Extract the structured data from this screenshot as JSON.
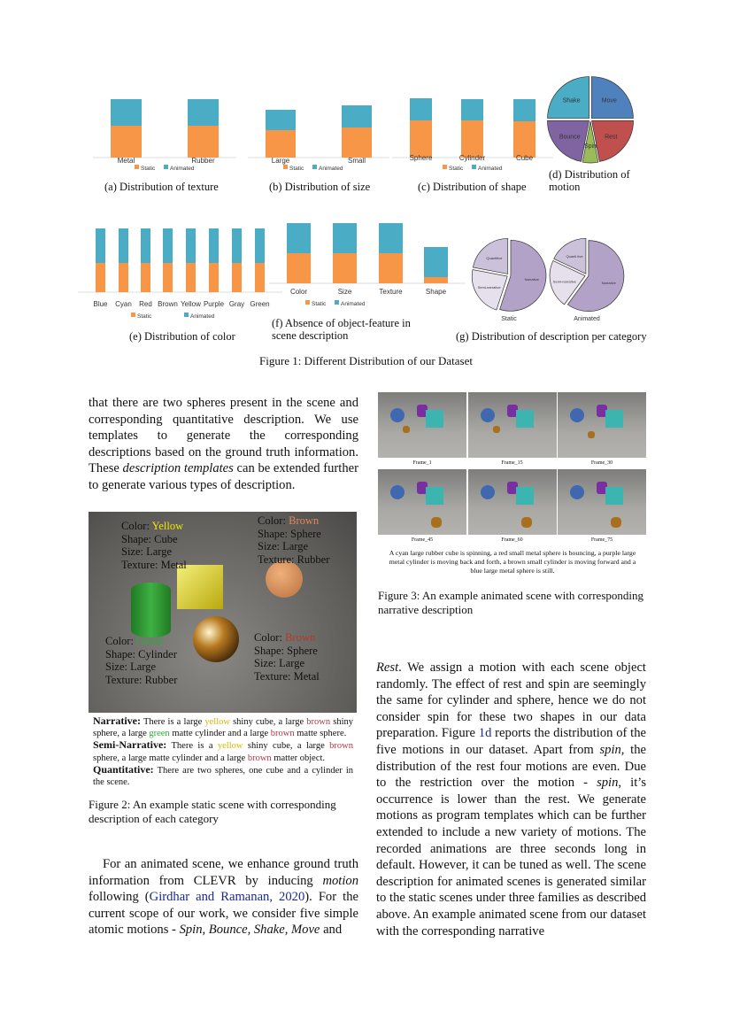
{
  "figure1": {
    "caption": "Figure 1: Different Distribution of our Dataset",
    "legend": [
      "Static",
      "Animated"
    ],
    "colors": {
      "static": "#f79646",
      "animated": "#4bacc6"
    }
  },
  "chart_data": [
    {
      "id": "a",
      "type": "bar",
      "stacked": true,
      "caption": "(a) Distribution of texture",
      "categories": [
        "Metal",
        "Rubber"
      ],
      "series": [
        {
          "name": "Static",
          "values": [
            36,
            36
          ]
        },
        {
          "name": "Animated",
          "values": [
            30,
            30
          ]
        }
      ],
      "ylim": [
        0,
        70
      ]
    },
    {
      "id": "b",
      "type": "bar",
      "stacked": true,
      "caption": "(b) Distribution of size",
      "categories": [
        "Large",
        "Small"
      ],
      "series": [
        {
          "name": "Static",
          "values": [
            31,
            34
          ]
        },
        {
          "name": "Animated",
          "values": [
            23,
            25
          ]
        }
      ],
      "ylim": [
        0,
        70
      ]
    },
    {
      "id": "c",
      "type": "bar",
      "stacked": true,
      "caption": "(c) Distribution of shape",
      "categories": [
        "Sphere",
        "Cylinder",
        "Cube"
      ],
      "series": [
        {
          "name": "Static",
          "values": [
            42,
            42,
            41
          ]
        },
        {
          "name": "Animated",
          "values": [
            25,
            24,
            25
          ]
        }
      ],
      "ylim": [
        0,
        70
      ]
    },
    {
      "id": "d",
      "type": "pie",
      "caption": "(d) Distribution of motion",
      "labels": [
        "Move",
        "Rest",
        "Spin",
        "Bounce",
        "Shake"
      ],
      "values": [
        25,
        22,
        6,
        22,
        25
      ],
      "colors": [
        "#4f81bd",
        "#c0504d",
        "#9bbb59",
        "#8064a2",
        "#4bacc6"
      ]
    },
    {
      "id": "e",
      "type": "bar",
      "stacked": true,
      "caption": "(e) Distribution of color",
      "categories": [
        "Blue",
        "Cyan",
        "Red",
        "Brown",
        "Yellow",
        "Purple",
        "Gray",
        "Green"
      ],
      "series": [
        {
          "name": "Static",
          "values": [
            33,
            33,
            33,
            33,
            33,
            33,
            33,
            33
          ]
        },
        {
          "name": "Animated",
          "values": [
            39,
            39,
            39,
            39,
            39,
            39,
            39,
            39
          ]
        }
      ],
      "ylim": [
        0,
        75
      ]
    },
    {
      "id": "f",
      "type": "bar",
      "stacked": true,
      "caption": "(f) Absence of object-feature in scene description",
      "categories": [
        "Color",
        "Size",
        "Texture",
        "Shape"
      ],
      "series": [
        {
          "name": "Static",
          "values": [
            34,
            34,
            34,
            7
          ]
        },
        {
          "name": "Animated",
          "values": [
            34,
            34,
            34,
            34
          ]
        }
      ],
      "ylim": [
        0,
        70
      ]
    },
    {
      "id": "g",
      "type": "pie",
      "caption": "(g) Distribution of description per category",
      "pies": [
        {
          "title": "Static",
          "labels": [
            "Narrative",
            "Semi-narrative",
            "Quantitive"
          ],
          "values": [
            55,
            23,
            22
          ]
        },
        {
          "title": "Animated",
          "labels": [
            "Narrative",
            "Semi-narrative",
            "Quanti tive"
          ],
          "values": [
            60,
            22,
            18
          ]
        }
      ],
      "colors": [
        "#b3a2c7",
        "#e6e0ec",
        "#ccc1da"
      ]
    }
  ],
  "left_para1": "that there are two spheres present in the scene and corresponding quantitative description. We use templates to generate the corresponding descriptions based on the ground truth information. These",
  "left_para1_em": "description templates",
  "left_para1_end": "can be extended further to generate various types of description.",
  "figure2": {
    "objects": [
      {
        "color_label": "Color: ",
        "color": "Yellow",
        "hex": "#f2e600",
        "shape": "Shape: Cube",
        "size": "Size: Large",
        "texture": "Texture: Metal"
      },
      {
        "color_label": "Color: ",
        "color": "Brown",
        "hex": "#e08a5a",
        "shape": "Shape: Sphere",
        "size": "Size: Large",
        "texture": "Texture: Rubber"
      },
      {
        "color_label": "Color: ",
        "color": "Green",
        "hex": "#2eaa3a",
        "shape": "Shape: Cylinder",
        "size": "Size: Large",
        "texture": "Texture: Rubber"
      },
      {
        "color_label": "Color: ",
        "color": "Brown",
        "hex": "#b03a2a",
        "shape": "Shape: Sphere",
        "size": "Size: Large",
        "texture": "Texture: Metal"
      }
    ],
    "narrative_label": "Narrative:",
    "semi_label": "Semi-Narrative:",
    "quant_label": "Quantitative:",
    "narr": [
      "There is a large ",
      "yellow",
      " shiny cube, a large ",
      "brown",
      " shiny sphere, a large ",
      "green",
      " matte cylinder and a large ",
      "brown",
      " matte sphere."
    ],
    "semi": [
      "There is a ",
      "yellow",
      " shiny cube, a large ",
      "brown",
      " sphere, a large matte cylinder and a large ",
      "brown",
      " matter object."
    ],
    "quant": "There are two spheres, one cube and a cylinder in the scene.",
    "caption": "Figure 2: An example static scene with corresponding description of each category"
  },
  "left_para2": [
    "For an animated scene, we enhance ground truth information from CLEVR by inducing ",
    "motion",
    " following (",
    "Girdhar and Ramanan, 2020",
    "). For the current scope of our work, we consider five simple atomic motions - ",
    "Spin, Bounce, Shake, Move",
    " and"
  ],
  "figure3": {
    "frames": [
      "Frame_1",
      "Frame_15",
      "Frame_30",
      "Frame_45",
      "Frame_60",
      "Frame_75"
    ],
    "description": "A cyan large rubber cube is spinning, a red small metal sphere is bouncing, a purple large metal cylinder is moving back and forth, a brown small cylinder is moving forward and a blue large metal sphere is still.",
    "caption": "Figure 3: An example animated scene with corresponding narrative description"
  },
  "right_para": [
    "Rest",
    ". We assign a motion with each scene object randomly. The effect of rest and spin are seemingly the same for cylinder and sphere, hence we do not consider spin for these two shapes in our data preparation. Figure ",
    "1d",
    " reports the distribution of the five motions in our dataset. Apart from ",
    "spin",
    ", the distribution of the rest four motions are even. Due to the restriction over the motion - ",
    "spin",
    ", it’s occurrence is lower than the rest. We generate motions as program templates which can be further extended to include a new variety of motions. The recorded animations are three seconds long in default. However, it can be tuned as well. The scene description for animated scenes is generated similar to the static scenes under three families as described above. An example animated scene from our dataset with the corresponding narrative"
  ]
}
